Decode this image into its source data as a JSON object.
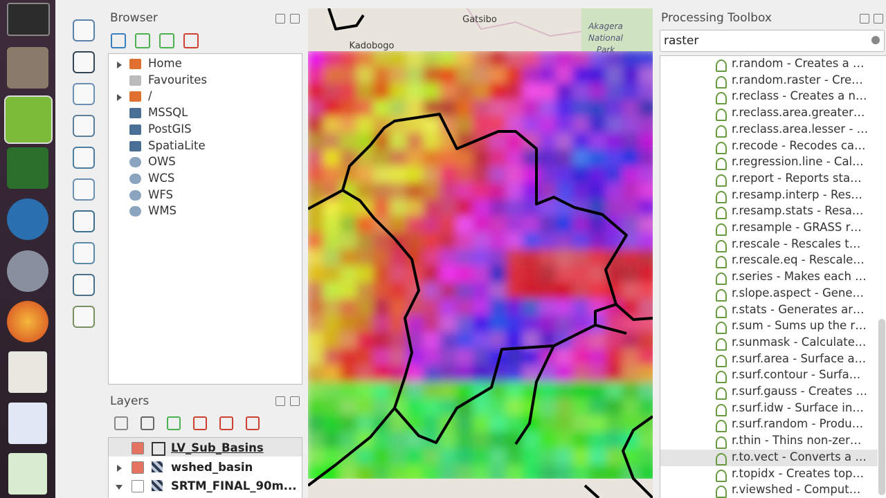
{
  "browser": {
    "title": "Browser",
    "items": [
      "Home",
      "Favourites",
      "/",
      "MSSQL",
      "PostGIS",
      "SpatiaLite",
      "OWS",
      "WCS",
      "WFS",
      "WMS"
    ]
  },
  "layers": {
    "title": "Layers",
    "items": [
      {
        "name": "LV_Sub_Basins",
        "checked": true
      },
      {
        "name": "wshed_basin",
        "checked": true
      },
      {
        "name": "SRTM_FINAL_90m...",
        "checked": false
      }
    ]
  },
  "map": {
    "labels": [
      "Gatsibo",
      "Kadobogo",
      "Akagera",
      "National",
      "Park"
    ]
  },
  "toolbox": {
    "title": "Processing Toolbox",
    "search": "raster",
    "selected": 24,
    "tools": [
      "r.random - Creates a …",
      "r.random.raster - Cre…",
      "r.reclass - Creates a n…",
      "r.reclass.area.greater…",
      "r.reclass.area.lesser - …",
      "r.recode - Recodes ca…",
      "r.regression.line - Cal…",
      "r.report - Reports sta…",
      "r.resamp.interp - Res…",
      "r.resamp.stats - Resa…",
      "r.resample - GRASS r…",
      "r.rescale - Rescales t…",
      "r.rescale.eq - Rescale…",
      "r.series - Makes each …",
      "r.slope.aspect - Gene…",
      "r.stats - Generates ar…",
      "r.sum - Sums up the r…",
      "r.sunmask - Calculate…",
      "r.surf.area - Surface a…",
      "r.surf.contour - Surfa…",
      "r.surf.gauss - Creates …",
      "r.surf.idw - Surface in…",
      "r.surf.random - Produ…",
      "r.thin - Thins non-zer…",
      "r.to.vect - Converts a …",
      "r.topidx - Creates top…",
      "r.viewshed - Comput…"
    ]
  }
}
